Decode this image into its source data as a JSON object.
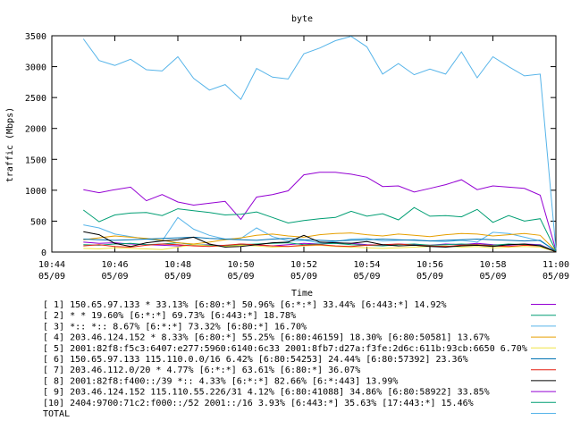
{
  "chart_data": {
    "type": "line",
    "title": "byte",
    "ylabel": "traffic (Mbps)",
    "xlabel": "Time",
    "ylim": [
      0,
      3500
    ],
    "yticks": [
      0,
      500,
      1000,
      1500,
      2000,
      2500,
      3000,
      3500
    ],
    "xticks": [
      {
        "time": "10:44",
        "date": "05/09"
      },
      {
        "time": "10:46",
        "date": "05/09"
      },
      {
        "time": "10:48",
        "date": "05/09"
      },
      {
        "time": "10:50",
        "date": "05/09"
      },
      {
        "time": "10:52",
        "date": "05/09"
      },
      {
        "time": "10:54",
        "date": "05/09"
      },
      {
        "time": "10:56",
        "date": "05/09"
      },
      {
        "time": "10:58",
        "date": "05/09"
      },
      {
        "time": "11:00",
        "date": "05/09"
      }
    ],
    "grid": false,
    "legend_position": "bottom",
    "x": [
      "10:45:00",
      "10:45:30",
      "10:46:00",
      "10:46:30",
      "10:47:00",
      "10:47:30",
      "10:48:00",
      "10:48:30",
      "10:49:00",
      "10:49:30",
      "10:50:00",
      "10:50:30",
      "10:51:00",
      "10:51:30",
      "10:52:00",
      "10:52:30",
      "10:53:00",
      "10:53:30",
      "10:54:00",
      "10:54:30",
      "10:55:00",
      "10:55:30",
      "10:56:00",
      "10:56:30",
      "10:57:00",
      "10:57:30",
      "10:58:00",
      "10:58:30",
      "10:59:00",
      "10:59:30",
      "11:00:00"
    ],
    "series": [
      {
        "name": "[ 1] 150.65.97.133 * 33.13%  [6:80:*] 50.96% [6:*:*] 33.44% [6:443:*] 14.92%",
        "color": "#9400d3",
        "values": [
          160,
          140,
          150,
          130,
          120,
          110,
          100,
          110,
          120,
          100,
          130,
          110,
          100,
          120,
          140,
          130,
          150,
          140,
          120,
          110,
          130,
          120,
          110,
          130,
          120,
          140,
          120,
          110,
          130,
          120,
          10
        ]
      },
      {
        "name": "[ 2] * * 19.60%  [6:*:*] 69.73% [6:443:*] 18.78%",
        "color": "#009e73",
        "values": [
          120,
          110,
          130,
          140,
          120,
          130,
          150,
          120,
          110,
          100,
          120,
          130,
          140,
          150,
          120,
          130,
          140,
          120,
          110,
          100,
          120,
          130,
          110,
          120,
          130,
          120,
          110,
          130,
          120,
          110,
          10
        ]
      },
      {
        "name": "[ 3] *:: *:: 8.67%  [6:*:*] 73.32% [6:80:*] 16.70%",
        "color": "#56b4e9",
        "values": [
          440,
          390,
          290,
          250,
          210,
          180,
          560,
          370,
          270,
          210,
          220,
          390,
          250,
          180,
          190,
          150,
          170,
          210,
          220,
          180,
          190,
          200,
          180,
          170,
          190,
          160,
          320,
          300,
          240,
          180,
          20
        ]
      },
      {
        "name": "[ 4] 203.46.124.152 * 8.33%  [6:80:*] 55.25% [6:80:46159] 18.30% [6:80:50581] 13.67%",
        "color": "#e69f00",
        "values": [
          200,
          230,
          260,
          240,
          220,
          190,
          150,
          130,
          160,
          200,
          230,
          270,
          290,
          260,
          240,
          280,
          300,
          310,
          280,
          260,
          290,
          270,
          250,
          280,
          300,
          290,
          260,
          280,
          300,
          270,
          20
        ]
      },
      {
        "name": "[ 5] 2001:82f8:f5c3:6407:e277:5960:6140:6c33 2001:8fb7:d27a:f3fe:2d6c:611b:93cb:6650 6.70%",
        "color": "#f0e442",
        "values": [
          60,
          50,
          70,
          60,
          50,
          40,
          80,
          120,
          100,
          90,
          110,
          100,
          80,
          90,
          100,
          110,
          90,
          80,
          70,
          60,
          70,
          80,
          90,
          100,
          80,
          90,
          70,
          80,
          90,
          80,
          5
        ]
      },
      {
        "name": "[ 6] 150.65.97.133 115.110.0.0/16 6.42%  [6:80:54253] 24.44% [6:80:57392] 23.36%",
        "color": "#0072b2",
        "values": [
          210,
          200,
          190,
          200,
          210,
          220,
          230,
          240,
          220,
          210,
          200,
          190,
          210,
          220,
          200,
          190,
          180,
          190,
          200,
          210,
          200,
          190,
          180,
          190,
          200,
          210,
          200,
          190,
          180,
          190,
          10
        ]
      },
      {
        "name": "[ 7] 203.46.112.0/20 * 4.77%  [6:*:*] 63.61% [6:80:*] 36.07%",
        "color": "#e51e10",
        "values": [
          100,
          120,
          90,
          80,
          110,
          130,
          120,
          100,
          90,
          110,
          130,
          120,
          100,
          90,
          110,
          120,
          100,
          90,
          110,
          120,
          130,
          110,
          100,
          90,
          110,
          120,
          100,
          90,
          110,
          100,
          5
        ]
      },
      {
        "name": "[ 8] 2001:82f8:f400::/39 *:: 4.33%  [6:*:*] 82.66% [6:*:443] 13.99%",
        "color": "#000000",
        "values": [
          330,
          280,
          140,
          90,
          150,
          180,
          200,
          240,
          130,
          80,
          90,
          120,
          150,
          160,
          270,
          160,
          150,
          140,
          170,
          120,
          100,
          110,
          90,
          80,
          100,
          110,
          90,
          120,
          130,
          100,
          5
        ]
      },
      {
        "name": "[ 9] 203.46.124.152 115.110.55.226/31 4.12%  [6:80:41088] 34.86% [6:80:58922] 33.85%",
        "color": "#9400d3",
        "values": [
          1010,
          960,
          1010,
          1050,
          830,
          930,
          810,
          760,
          790,
          820,
          530,
          890,
          930,
          990,
          1250,
          1290,
          1290,
          1260,
          1210,
          1060,
          1070,
          970,
          1030,
          1090,
          1170,
          1010,
          1070,
          1050,
          1030,
          920,
          30
        ]
      },
      {
        "name": "[10] 2404:9700:71c2:f000::/52 2001::/16 3.93%  [6:443:*] 35.63% [17:443:*] 15.46%",
        "color": "#009e73",
        "values": [
          680,
          490,
          600,
          630,
          640,
          590,
          700,
          670,
          640,
          600,
          610,
          650,
          560,
          470,
          510,
          540,
          560,
          660,
          580,
          620,
          520,
          720,
          580,
          590,
          570,
          690,
          480,
          590,
          500,
          540,
          20
        ]
      },
      {
        "name": "TOTAL",
        "color": "#56b4e9",
        "values": [
          3450,
          3100,
          3020,
          3120,
          2950,
          2930,
          3160,
          2810,
          2620,
          2710,
          2470,
          2970,
          2830,
          2800,
          3210,
          3300,
          3420,
          3490,
          3320,
          2880,
          3050,
          2870,
          2960,
          2880,
          3240,
          2820,
          3160,
          3000,
          2850,
          2880,
          40
        ]
      }
    ]
  }
}
